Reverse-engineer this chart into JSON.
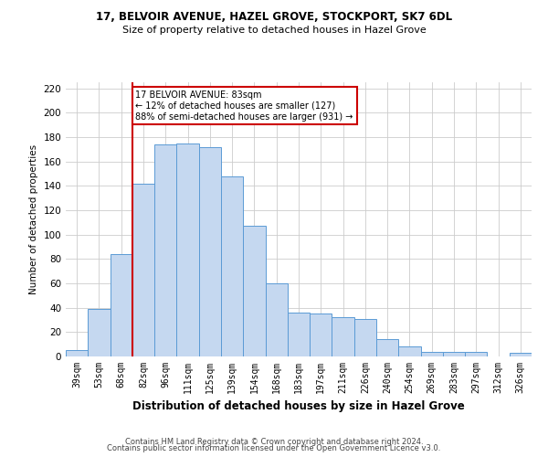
{
  "title1": "17, BELVOIR AVENUE, HAZEL GROVE, STOCKPORT, SK7 6DL",
  "title2": "Size of property relative to detached houses in Hazel Grove",
  "xlabel": "Distribution of detached houses by size in Hazel Grove",
  "ylabel": "Number of detached properties",
  "footnote1": "Contains HM Land Registry data © Crown copyright and database right 2024.",
  "footnote2": "Contains public sector information licensed under the Open Government Licence v3.0.",
  "categories": [
    "39sqm",
    "53sqm",
    "68sqm",
    "82sqm",
    "96sqm",
    "111sqm",
    "125sqm",
    "139sqm",
    "154sqm",
    "168sqm",
    "183sqm",
    "197sqm",
    "211sqm",
    "226sqm",
    "240sqm",
    "254sqm",
    "269sqm",
    "283sqm",
    "297sqm",
    "312sqm",
    "326sqm"
  ],
  "values": [
    5,
    39,
    84,
    142,
    174,
    175,
    172,
    148,
    107,
    60,
    36,
    35,
    32,
    31,
    14,
    8,
    4,
    4,
    4,
    0,
    3
  ],
  "bar_color": "#c5d8f0",
  "bar_edge_color": "#5b9bd5",
  "red_line_color": "#cc0000",
  "annotation_box_edge": "#cc0000",
  "property_label": "17 BELVOIR AVENUE: 83sqm",
  "annotation_line1": "← 12% of detached houses are smaller (127)",
  "annotation_line2": "88% of semi-detached houses are larger (931) →",
  "ylim": [
    0,
    225
  ],
  "yticks": [
    0,
    20,
    40,
    60,
    80,
    100,
    120,
    140,
    160,
    180,
    200,
    220
  ],
  "bg_color": "#ffffff",
  "grid_color": "#cccccc",
  "red_line_x": 2.5
}
